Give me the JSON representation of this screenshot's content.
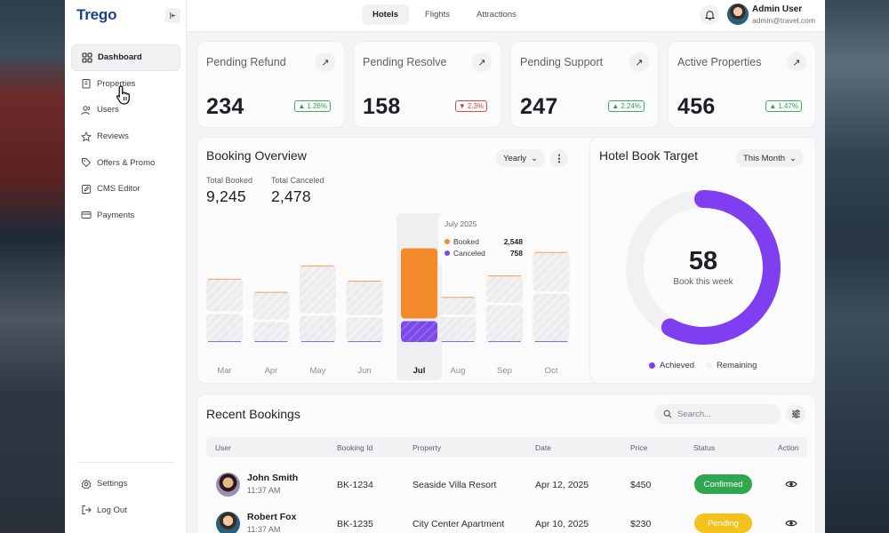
{
  "app": {
    "logo": "Trego",
    "top_tabs": [
      "Hotels",
      "Flights",
      "Attractions"
    ],
    "active_top_tab": "Hotels",
    "user": {
      "name": "Admin User",
      "email": "admin@travel.com"
    }
  },
  "sidebar": {
    "items": [
      {
        "label": "Dashboard",
        "icon": "grid-icon"
      },
      {
        "label": "Properties",
        "icon": "building-icon"
      },
      {
        "label": "Users",
        "icon": "users-icon"
      },
      {
        "label": "Reviews",
        "icon": "star-icon"
      },
      {
        "label": "Offers & Promo",
        "icon": "tag-icon"
      },
      {
        "label": "CMS Editor",
        "icon": "edit-icon"
      },
      {
        "label": "Payments",
        "icon": "card-icon"
      }
    ],
    "active": "Dashboard",
    "bottom_items": [
      {
        "label": "Settings",
        "icon": "gear-icon"
      },
      {
        "label": "Log Out",
        "icon": "logout-icon"
      }
    ]
  },
  "stats": [
    {
      "title": "Pending Refund",
      "value": "234",
      "change": "1.26%",
      "trend": "up"
    },
    {
      "title": "Pending Resolve",
      "value": "158",
      "change": "2.3%",
      "trend": "down"
    },
    {
      "title": "Pending Support",
      "value": "247",
      "change": "2.24%",
      "trend": "up"
    },
    {
      "title": "Active Properties",
      "value": "456",
      "change": "1.47%",
      "trend": "up"
    }
  ],
  "booking_overview": {
    "title": "Booking Overview",
    "period": "Yearly",
    "total_booked_label": "Total Booked",
    "total_booked": "9,245",
    "total_canceled_label": "Total Canceled",
    "total_canceled": "2,478",
    "tooltip": {
      "date": "July 2025",
      "booked_label": "Booked",
      "booked_value": "2,548",
      "canceled_label": "Canceled",
      "canceled_value": "758"
    }
  },
  "chart_data": {
    "type": "bar",
    "categories": [
      "Mar",
      "Apr",
      "May",
      "Jun",
      "Jul",
      "Aug",
      "Sep",
      "Oct"
    ],
    "highlighted": "Jul",
    "series": [
      {
        "name": "Booked",
        "values": [
          1180,
          1000,
          1730,
          1240,
          2548,
          640,
          980,
          1420
        ]
      },
      {
        "name": "Canceled",
        "values": [
          1020,
          720,
          950,
          890,
          758,
          900,
          1340,
          1750
        ]
      }
    ],
    "colors": {
      "booked": "#f58a2a",
      "canceled": "#7c4ae8",
      "inactive": "#e9e9ec"
    }
  },
  "hotel_target": {
    "title": "Hotel Book Target",
    "period": "This Month",
    "value": "58",
    "caption": "Book this week",
    "achieved_fraction": 0.58,
    "legend_achieved": "Achieved",
    "legend_remaining": "Remaining",
    "colors": {
      "achieved": "#7f3ff0",
      "remaining": "#f1f1f4"
    }
  },
  "recent_bookings": {
    "title": "Recent Bookings",
    "search_placeholder": "Search...",
    "columns": [
      "User",
      "Booking Id",
      "Property",
      "Date",
      "Price",
      "Status",
      "Action"
    ],
    "rows": [
      {
        "name": "John Smith",
        "time": "11:37 AM",
        "id": "BK-1234",
        "property": "Seaside Villa Resort",
        "date": "Apr 12, 2025",
        "price": "$450",
        "status": "Confirmed"
      },
      {
        "name": "Robert Fox",
        "time": "11:37 AM",
        "id": "BK-1235",
        "property": "City Center Apartment",
        "date": "Apr 10, 2025",
        "price": "$230",
        "status": "Pending"
      }
    ]
  }
}
